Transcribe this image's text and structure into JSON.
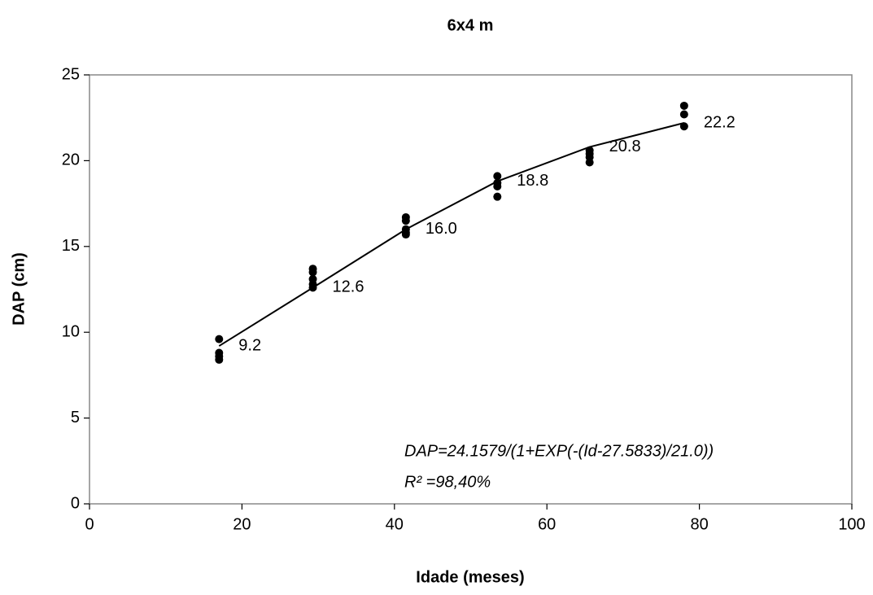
{
  "chart_data": {
    "type": "scatter",
    "title": "6x4 m",
    "xlabel": "Idade (meses)",
    "ylabel": "DAP (cm)",
    "xlim": [
      0,
      100
    ],
    "xticks": [
      0,
      20,
      40,
      60,
      80,
      100
    ],
    "ylim": [
      0,
      25
    ],
    "yticks": [
      0,
      5,
      10,
      15,
      20,
      25
    ],
    "grid": false,
    "annotations": [
      "DAP=24.1579/(1+EXP(-(Id-27.5833)/21.0))",
      "R² =98,40%"
    ],
    "series": [
      {
        "type": "scatter",
        "color": "#000000",
        "x": [
          17,
          17,
          17,
          17,
          29.3,
          29.3,
          29.3,
          29.3,
          29.3,
          41.5,
          41.5,
          41.5,
          41.5,
          41.5,
          53.5,
          53.5,
          53.5,
          53.5,
          65.6,
          65.6,
          65.6,
          65.6,
          78,
          78,
          78
        ],
        "values": [
          9.6,
          8.8,
          8.6,
          8.4,
          13.7,
          13.5,
          13.1,
          12.8,
          12.6,
          16.7,
          16.5,
          16.0,
          15.8,
          15.7,
          19.1,
          18.7,
          18.5,
          17.9,
          20.6,
          20.4,
          20.2,
          19.9,
          23.2,
          22.7,
          22.0
        ]
      },
      {
        "type": "line",
        "color": "#000000",
        "x": [
          17,
          29.3,
          41.5,
          53.5,
          65.6,
          78
        ],
        "values": [
          9.2,
          12.6,
          16.0,
          18.8,
          20.8,
          22.2
        ],
        "value_labels": [
          "9.2",
          "12.6",
          "16.0",
          "18.8",
          "20.8",
          "22.2"
        ]
      }
    ]
  }
}
